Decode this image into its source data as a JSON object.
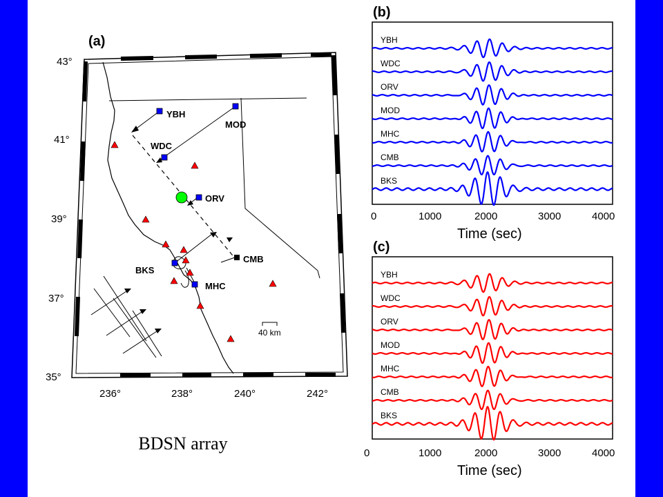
{
  "caption": "BDSN array",
  "colors": {
    "frame_blue": "#0000ff",
    "trace_b": "#0000ff",
    "trace_c": "#ff0000",
    "volcano": "#ff0000",
    "epicenter": "#00ff00",
    "station": "#0000ff"
  },
  "map": {
    "panel_label": "(a)",
    "lat_labels": [
      "43°",
      "41°",
      "39°",
      "37°",
      "35°"
    ],
    "lon_labels": [
      "236°",
      "238°",
      "240°",
      "242°"
    ],
    "scale_label": "40 km",
    "stations": [
      {
        "code": "YBH"
      },
      {
        "code": "MOD"
      },
      {
        "code": "WDC"
      },
      {
        "code": "ORV"
      },
      {
        "code": "CMB"
      },
      {
        "code": "BKS"
      },
      {
        "code": "MHC"
      }
    ]
  },
  "chart_data": [
    {
      "type": "line",
      "panel_label": "(b)",
      "xlabel": "Time (sec)",
      "xlim": [
        0,
        4000
      ],
      "x_ticks": [
        "0",
        "1000",
        "2000",
        "3000",
        "4000"
      ],
      "series": [
        {
          "name": "YBH"
        },
        {
          "name": "WDC"
        },
        {
          "name": "ORV"
        },
        {
          "name": "MOD"
        },
        {
          "name": "MHC"
        },
        {
          "name": "CMB"
        },
        {
          "name": "BKS"
        }
      ]
    },
    {
      "type": "line",
      "panel_label": "(c)",
      "xlabel": "Time (sec)",
      "xlim": [
        0,
        4000
      ],
      "x_ticks": [
        "0",
        "1000",
        "2000",
        "3000",
        "4000"
      ],
      "series": [
        {
          "name": "YBH"
        },
        {
          "name": "WDC"
        },
        {
          "name": "ORV"
        },
        {
          "name": "MOD"
        },
        {
          "name": "MHC"
        },
        {
          "name": "CMB"
        },
        {
          "name": "BKS"
        }
      ]
    }
  ]
}
